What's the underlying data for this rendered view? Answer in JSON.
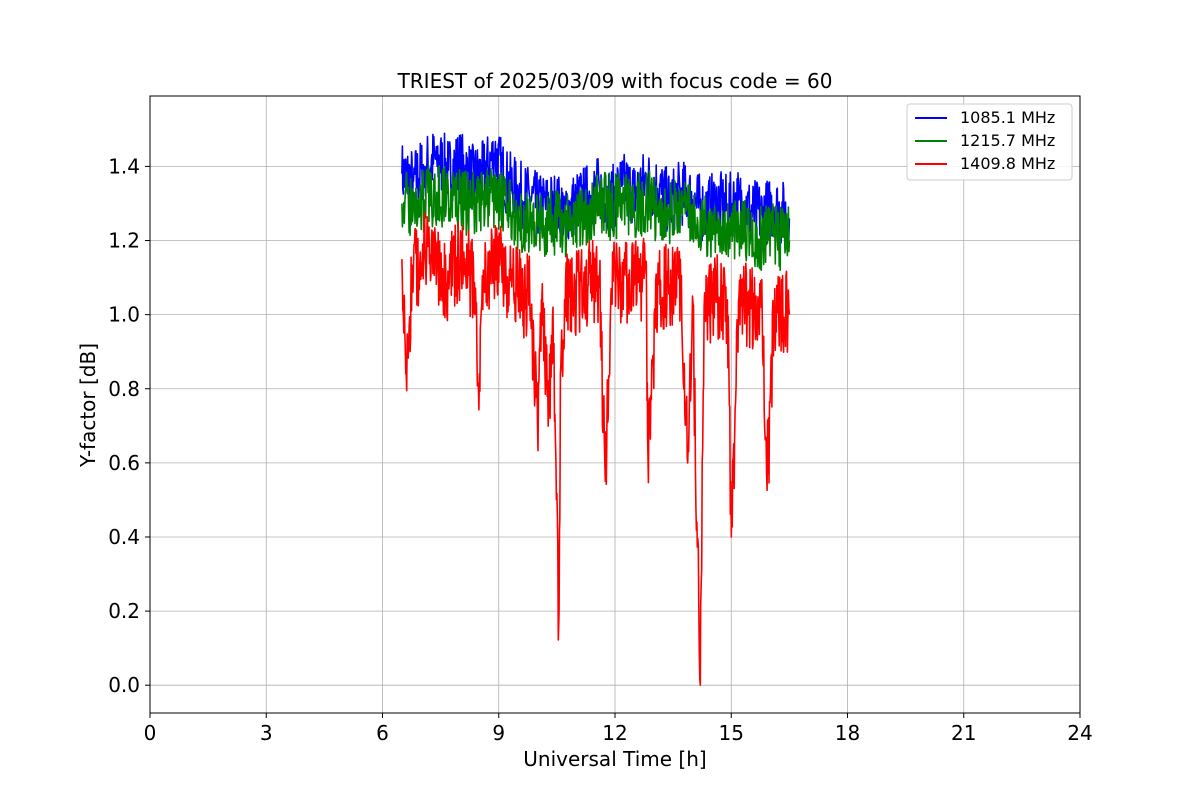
{
  "chart_data": {
    "type": "line",
    "title": "TRIEST of 2025/03/09 with focus code = 60",
    "xlabel": "Universal Time [h]",
    "ylabel": "Y-factor [dB]",
    "xlim": [
      0,
      24
    ],
    "ylim": [
      -0.075,
      1.59
    ],
    "xticks": [
      0,
      3,
      6,
      9,
      12,
      15,
      18,
      21,
      24
    ],
    "xtick_labels": [
      "0",
      "3",
      "6",
      "9",
      "12",
      "15",
      "18",
      "21",
      "24"
    ],
    "yticks": [
      0.0,
      0.2,
      0.4,
      0.6,
      0.8,
      1.0,
      1.2,
      1.4
    ],
    "ytick_labels": [
      "0.0",
      "0.2",
      "0.4",
      "0.6",
      "0.8",
      "1.0",
      "1.2",
      "1.4"
    ],
    "grid": true,
    "legend_position": "top-right",
    "series": [
      {
        "name": "1085.1 MHz",
        "color": "#0000ff",
        "x": [
          6.5,
          6.8,
          7.1,
          7.4,
          7.7,
          8.0,
          8.3,
          8.6,
          8.9,
          9.2,
          9.5,
          9.8,
          10.1,
          10.4,
          10.7,
          11.0,
          11.3,
          11.6,
          11.9,
          12.2,
          12.5,
          12.8,
          13.1,
          13.4,
          13.7,
          14.0,
          14.3,
          14.6,
          14.9,
          15.2,
          15.5,
          15.8,
          16.1,
          16.5
        ],
        "y": [
          1.38,
          1.36,
          1.4,
          1.42,
          1.39,
          1.41,
          1.37,
          1.38,
          1.43,
          1.36,
          1.33,
          1.31,
          1.29,
          1.3,
          1.28,
          1.3,
          1.32,
          1.34,
          1.31,
          1.35,
          1.33,
          1.36,
          1.34,
          1.3,
          1.33,
          1.31,
          1.28,
          1.3,
          1.29,
          1.31,
          1.28,
          1.27,
          1.29,
          1.26
        ]
      },
      {
        "name": "1215.7 MHz",
        "color": "#008000",
        "x": [
          6.5,
          6.8,
          7.1,
          7.4,
          7.7,
          8.0,
          8.3,
          8.6,
          8.9,
          9.2,
          9.5,
          9.8,
          10.1,
          10.4,
          10.7,
          11.0,
          11.3,
          11.6,
          11.9,
          12.2,
          12.5,
          12.8,
          13.1,
          13.4,
          13.7,
          14.0,
          14.3,
          14.6,
          14.9,
          15.2,
          15.5,
          15.8,
          16.1,
          16.5
        ],
        "y": [
          1.3,
          1.29,
          1.31,
          1.33,
          1.32,
          1.3,
          1.3,
          1.31,
          1.32,
          1.28,
          1.26,
          1.25,
          1.24,
          1.25,
          1.24,
          1.26,
          1.28,
          1.3,
          1.29,
          1.3,
          1.28,
          1.31,
          1.28,
          1.27,
          1.28,
          1.26,
          1.24,
          1.25,
          1.23,
          1.24,
          1.22,
          1.2,
          1.21,
          1.2
        ]
      },
      {
        "name": "1409.8 MHz",
        "color": "#ff0000",
        "x": [
          6.5,
          6.6,
          6.8,
          7.1,
          7.4,
          7.7,
          8.0,
          8.3,
          8.5,
          8.6,
          8.9,
          9.2,
          9.5,
          9.8,
          10.0,
          10.1,
          10.3,
          10.4,
          10.55,
          10.6,
          10.7,
          11.0,
          11.3,
          11.6,
          11.75,
          11.9,
          12.2,
          12.5,
          12.8,
          12.85,
          13.1,
          13.4,
          13.7,
          13.9,
          14.0,
          14.2,
          14.3,
          14.6,
          14.9,
          15.0,
          15.2,
          15.5,
          15.8,
          15.95,
          16.1,
          16.5
        ],
        "y": [
          1.15,
          0.84,
          1.13,
          1.16,
          1.12,
          1.1,
          1.14,
          1.11,
          0.84,
          1.12,
          1.14,
          1.1,
          1.06,
          1.04,
          0.7,
          1.04,
          0.76,
          1.02,
          0.17,
          0.86,
          1.04,
          1.06,
          1.08,
          1.09,
          0.55,
          1.07,
          1.1,
          1.08,
          1.11,
          0.63,
          1.07,
          1.08,
          1.06,
          0.63,
          1.05,
          0.0,
          1.02,
          1.05,
          1.04,
          0.4,
          1.05,
          1.02,
          0.98,
          0.57,
          1.0,
          1.0
        ]
      }
    ]
  }
}
